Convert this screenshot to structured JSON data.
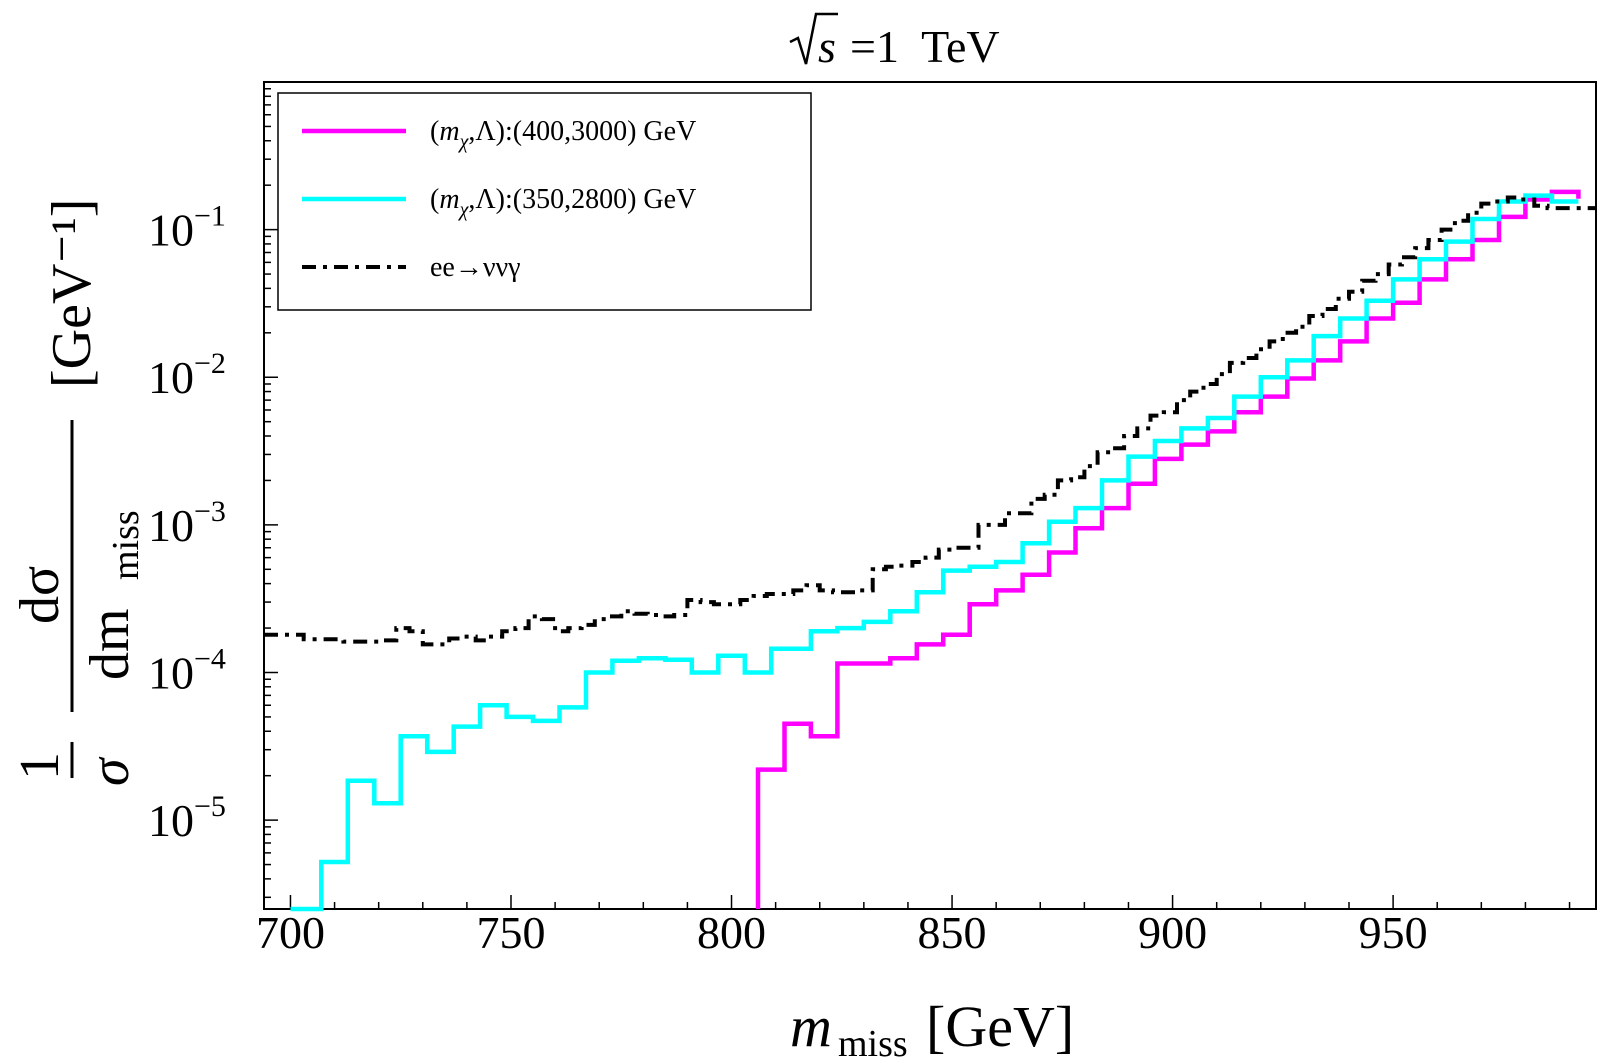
{
  "chart_data": {
    "type": "line",
    "step": true,
    "title": "√s =1  TeV",
    "title_parts": {
      "root_label": "s",
      "rest": "=1  TeV"
    },
    "xlabel": "m_miss[GeV]",
    "xlabel_parts": {
      "symbol": "m",
      "subscript": "miss",
      "unit": "[GeV]"
    },
    "ylabel": "1/σ dσ/dm_miss [GeV⁻¹]",
    "ylabel_parts": {
      "one": "1",
      "sigma": "σ",
      "numerator": "dσ",
      "denominator_main": "dm",
      "denominator_sub": "miss",
      "unit": "[GeV⁻¹]"
    },
    "y_scale": "log",
    "xlim": [
      694,
      996
    ],
    "ylim": [
      2.5e-06,
      1.0
    ],
    "x_ticks": [
      {
        "value": 700,
        "label": "700"
      },
      {
        "value": 750,
        "label": "750"
      },
      {
        "value": 800,
        "label": "800"
      },
      {
        "value": 850,
        "label": "850"
      },
      {
        "value": 900,
        "label": "900"
      },
      {
        "value": 950,
        "label": "950"
      }
    ],
    "y_ticks": [
      {
        "value": 1e-05,
        "base": "10",
        "exp": "−5"
      },
      {
        "value": 0.0001,
        "base": "10",
        "exp": "−4"
      },
      {
        "value": 0.001,
        "base": "10",
        "exp": "−3"
      },
      {
        "value": 0.01,
        "base": "10",
        "exp": "−2"
      },
      {
        "value": 0.1,
        "base": "10",
        "exp": "−1"
      }
    ],
    "legend_position": "top-left",
    "series": [
      {
        "name": "(m_χ,Λ):(400,3000) GeV",
        "label_parts": {
          "open": "(",
          "m": "m",
          "chi": "χ",
          "rest": ",Λ):(400,3000) GeV"
        },
        "color": "#ff00ff",
        "dash": "solid",
        "edges": [
          806,
          812,
          818,
          824,
          830,
          836,
          842,
          848,
          854,
          860,
          866,
          872,
          878,
          884,
          890,
          896,
          902,
          908,
          914,
          920,
          926,
          932,
          938,
          944,
          950,
          956,
          962,
          968,
          974,
          980,
          986,
          992
        ],
        "values": [
          2.2e-05,
          4.5e-05,
          3.7e-05,
          0.000115,
          0.000115,
          0.000125,
          0.000155,
          0.00018,
          0.00029,
          0.00036,
          0.00046,
          0.00065,
          0.00095,
          0.0013,
          0.0019,
          0.0028,
          0.0035,
          0.0043,
          0.0058,
          0.0074,
          0.0098,
          0.013,
          0.0175,
          0.025,
          0.032,
          0.046,
          0.063,
          0.085,
          0.122,
          0.16,
          0.18,
          0.162
        ]
      },
      {
        "name": "(m_χ,Λ):(350,2800) GeV",
        "label_parts": {
          "open": "(",
          "m": "m",
          "chi": "χ",
          "rest": ",Λ):(350,2800) GeV"
        },
        "color": "#00ffff",
        "dash": "solid",
        "edges": [
          700,
          707,
          713,
          719,
          725,
          731,
          737,
          743,
          749,
          755,
          761,
          767,
          773,
          779,
          785,
          791,
          797,
          803,
          809,
          812,
          818,
          824,
          830,
          836,
          842,
          848,
          854,
          860,
          866,
          872,
          878,
          884,
          890,
          896,
          902,
          908,
          914,
          920,
          926,
          932,
          938,
          944,
          950,
          956,
          962,
          968,
          974,
          980,
          986,
          992
        ],
        "values": [
          2.5e-06,
          5.2e-06,
          1.85e-05,
          1.3e-05,
          3.7e-05,
          2.9e-05,
          4.3e-05,
          6e-05,
          5e-05,
          4.7e-05,
          5.8e-05,
          0.0001,
          0.00012,
          0.000125,
          0.000122,
          0.0001,
          0.00013,
          0.0001,
          0.000145,
          0.000145,
          0.00019,
          0.0002,
          0.00022,
          0.00026,
          0.00035,
          0.00049,
          0.00052,
          0.00056,
          0.00075,
          0.00105,
          0.0013,
          0.002,
          0.0029,
          0.0037,
          0.0045,
          0.0053,
          0.0074,
          0.01,
          0.013,
          0.019,
          0.025,
          0.033,
          0.046,
          0.063,
          0.083,
          0.118,
          0.155,
          0.17,
          0.155
        ]
      },
      {
        "name": "ee→ννγ",
        "label_parts": {
          "text": "ee→ννγ"
        },
        "color": "#000000",
        "dash": "dash-dot",
        "edges": [
          694,
          700,
          703,
          709,
          712,
          718,
          721,
          724,
          727,
          730,
          733,
          736,
          739,
          742,
          745,
          748,
          751,
          754,
          757,
          760,
          763,
          766,
          769,
          772,
          775,
          778,
          781,
          784,
          787,
          790,
          793,
          796,
          799,
          802,
          805,
          808,
          811,
          814,
          817,
          820,
          823,
          826,
          829,
          832,
          835,
          838,
          841,
          844,
          847,
          850,
          853,
          856,
          859,
          862,
          865,
          868,
          871,
          874,
          877,
          880,
          883,
          886,
          889,
          892,
          895,
          898,
          901,
          904,
          907,
          910,
          913,
          916,
          919,
          922,
          925,
          928,
          931,
          934,
          937,
          940,
          943,
          946,
          949,
          952,
          955,
          958,
          961,
          964,
          967,
          970,
          973,
          976,
          979,
          982,
          985,
          988,
          991,
          996
        ],
        "values": [
          0.00018,
          0.00018,
          0.000168,
          0.000168,
          0.000162,
          0.000162,
          0.000165,
          0.0002,
          0.00019,
          0.000155,
          0.000155,
          0.00017,
          0.000175,
          0.000165,
          0.000175,
          0.00019,
          0.0002,
          0.00024,
          0.00023,
          0.00019,
          0.0002,
          0.00021,
          0.00023,
          0.00024,
          0.00026,
          0.00025,
          0.000245,
          0.00024,
          0.000245,
          0.00031,
          0.0003,
          0.00029,
          0.00029,
          0.00031,
          0.00033,
          0.00034,
          0.00034,
          0.00036,
          0.00039,
          0.00036,
          0.00035,
          0.00035,
          0.00036,
          0.0005,
          0.00052,
          0.00053,
          0.00056,
          0.0006,
          0.00068,
          0.0007,
          0.0007,
          0.001,
          0.001,
          0.0012,
          0.0012,
          0.0015,
          0.0016,
          0.002,
          0.0021,
          0.0025,
          0.0031,
          0.0033,
          0.004,
          0.0045,
          0.0055,
          0.0058,
          0.007,
          0.008,
          0.009,
          0.0105,
          0.0125,
          0.0135,
          0.0155,
          0.0175,
          0.02,
          0.022,
          0.026,
          0.029,
          0.034,
          0.038,
          0.045,
          0.05,
          0.058,
          0.065,
          0.075,
          0.085,
          0.1,
          0.115,
          0.13,
          0.15,
          0.155,
          0.165,
          0.16,
          0.145,
          0.14,
          0.14,
          0.14
        ]
      }
    ]
  }
}
